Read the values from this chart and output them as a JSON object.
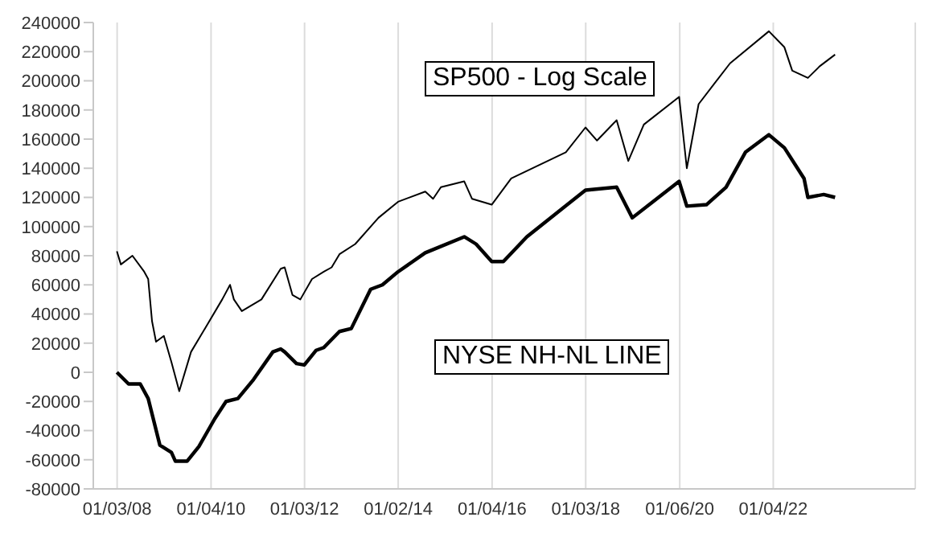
{
  "chart_data": {
    "type": "line",
    "xlim": [
      "2007-07-01",
      "2025-01-15"
    ],
    "xticks": [
      {
        "value": "2008-01-03",
        "label": "01/03/08"
      },
      {
        "value": "2010-01-04",
        "label": "01/04/10"
      },
      {
        "value": "2012-01-03",
        "label": "01/03/12"
      },
      {
        "value": "2014-01-02",
        "label": "01/02/14"
      },
      {
        "value": "2016-01-04",
        "label": "01/04/16"
      },
      {
        "value": "2018-01-03",
        "label": "01/03/18"
      },
      {
        "value": "2020-01-06",
        "label": "01/06/20"
      },
      {
        "value": "2022-01-04",
        "label": "01/04/22"
      }
    ],
    "ylim": [
      -80000,
      240000
    ],
    "yticks": [
      -80000,
      -60000,
      -40000,
      -20000,
      0,
      20000,
      40000,
      60000,
      80000,
      100000,
      120000,
      140000,
      160000,
      180000,
      200000,
      220000,
      240000
    ],
    "grid": "x",
    "marker": "none",
    "line_style": "solid",
    "series": [
      {
        "name": "SP500 - Log Scale",
        "color": "#000000",
        "x": [
          "2008-01",
          "2008-02",
          "2008-05",
          "2008-08",
          "2008-09",
          "2008-10",
          "2008-11",
          "2009-01",
          "2009-03",
          "2009-05",
          "2009-08",
          "2009-12",
          "2010-04",
          "2010-06",
          "2010-07",
          "2010-09",
          "2011-02",
          "2011-07",
          "2011-08",
          "2011-10",
          "2011-12",
          "2012-03",
          "2012-06",
          "2012-08",
          "2012-10",
          "2013-02",
          "2013-08",
          "2014-01",
          "2014-08",
          "2014-10",
          "2014-12",
          "2015-06",
          "2015-08",
          "2016-01",
          "2016-06",
          "2017-08",
          "2018-01",
          "2018-04",
          "2018-09",
          "2018-12",
          "2019-04",
          "2020-01",
          "2020-03",
          "2020-06",
          "2020-10",
          "2021-02",
          "2021-12",
          "2022-04",
          "2022-06",
          "2022-10",
          "2023-01",
          "2023-05"
        ],
        "values": [
          83000,
          74000,
          80000,
          69000,
          64000,
          35000,
          21000,
          25000,
          7000,
          -13000,
          14000,
          32000,
          50000,
          60000,
          50000,
          42000,
          50000,
          71000,
          72000,
          53000,
          50000,
          64000,
          69000,
          72000,
          81000,
          88000,
          106000,
          117000,
          124000,
          119000,
          127000,
          131000,
          119000,
          115000,
          133000,
          151000,
          168000,
          159000,
          173000,
          145000,
          170000,
          189000,
          140000,
          184000,
          198000,
          212000,
          234000,
          223000,
          207000,
          202000,
          210000,
          218000
        ]
      },
      {
        "name": "NYSE NH-NL LINE",
        "color": "#000000",
        "x": [
          "2008-01",
          "2008-04",
          "2008-07",
          "2008-09",
          "2008-12",
          "2009-03",
          "2009-04",
          "2009-07",
          "2009-10",
          "2010-02",
          "2010-05",
          "2010-08",
          "2010-12",
          "2011-05",
          "2011-07",
          "2011-08",
          "2011-11",
          "2012-01",
          "2012-04",
          "2012-06",
          "2012-10",
          "2013-01",
          "2013-06",
          "2013-09",
          "2014-01",
          "2014-08",
          "2015-06",
          "2015-09",
          "2016-01",
          "2016-04",
          "2016-10",
          "2018-01",
          "2018-09",
          "2019-01",
          "2020-01",
          "2020-03",
          "2020-08",
          "2021-01",
          "2021-06",
          "2021-12",
          "2022-04",
          "2022-09",
          "2022-10",
          "2023-02",
          "2023-05"
        ],
        "values": [
          0,
          -8000,
          -8000,
          -18000,
          -50000,
          -55000,
          -61000,
          -61000,
          -51000,
          -32000,
          -20000,
          -18000,
          -5000,
          14000,
          16000,
          14000,
          6000,
          5000,
          15000,
          17000,
          28000,
          30000,
          57000,
          60000,
          69000,
          82000,
          93000,
          88000,
          76000,
          76000,
          93000,
          125000,
          127000,
          106000,
          131000,
          114000,
          115000,
          127000,
          151000,
          163000,
          154000,
          133000,
          120000,
          122000,
          120000
        ]
      }
    ]
  }
}
